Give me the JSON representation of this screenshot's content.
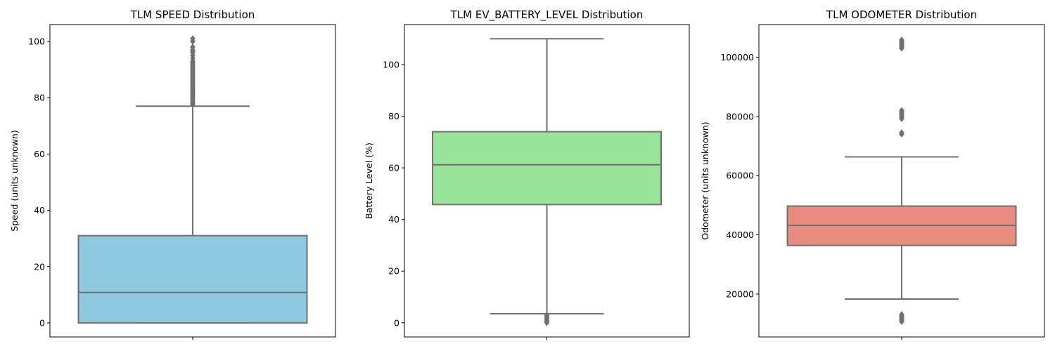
{
  "chart_data": [
    {
      "type": "box",
      "title": "TLM SPEED Distribution",
      "xlabel": "",
      "ylabel": "Speed (units unknown)",
      "ylim": [
        -5,
        106
      ],
      "yticks": [
        0,
        20,
        40,
        60,
        80,
        100
      ],
      "color": "#8fc9df",
      "stats": {
        "whisker_low": 0,
        "q1": 0,
        "median": 10.8,
        "q3": 31,
        "whisker_high": 77
      },
      "outliers": [
        77.5,
        78,
        78.5,
        79,
        79.5,
        80,
        80.5,
        81,
        81.5,
        82,
        82.5,
        83,
        83.5,
        84,
        84.5,
        85,
        85.5,
        86,
        86.5,
        87,
        87.5,
        88,
        88.5,
        89,
        89.5,
        90,
        90.5,
        91,
        91.5,
        92,
        92.5,
        93,
        94,
        95,
        96,
        96.5,
        97,
        98,
        100,
        101
      ]
    },
    {
      "type": "box",
      "title": "TLM EV_BATTERY_LEVEL Distribution",
      "xlabel": "",
      "ylabel": "Battery Level (%)",
      "ylim": [
        -5.5,
        115.5
      ],
      "yticks": [
        0,
        20,
        40,
        60,
        80,
        100
      ],
      "color": "#9ae39a",
      "stats": {
        "whisker_low": 3.5,
        "q1": 45.8,
        "median": 61.2,
        "q3": 74,
        "whisker_high": 110
      },
      "outliers": [
        0,
        0.5,
        1,
        1.5,
        2,
        2.5,
        3
      ]
    },
    {
      "type": "box",
      "title": "TLM ODOMETER Distribution",
      "xlabel": "",
      "ylabel": "Odometer (units unknown)",
      "ylim": [
        5500,
        111000
      ],
      "yticks": [
        20000,
        40000,
        60000,
        80000,
        100000
      ],
      "color": "#ea8b80",
      "stats": {
        "whisker_low": 18300,
        "q1": 36400,
        "median": 43200,
        "q3": 49700,
        "whisker_high": 66300
      },
      "outliers": [
        10700,
        11000,
        11300,
        11600,
        12000,
        12400,
        12800,
        13100,
        74000,
        74500,
        79200,
        79600,
        80000,
        80400,
        80800,
        81200,
        81600,
        82000,
        103000,
        103400,
        103800,
        104200,
        104600,
        105000,
        105400,
        105800
      ]
    }
  ]
}
